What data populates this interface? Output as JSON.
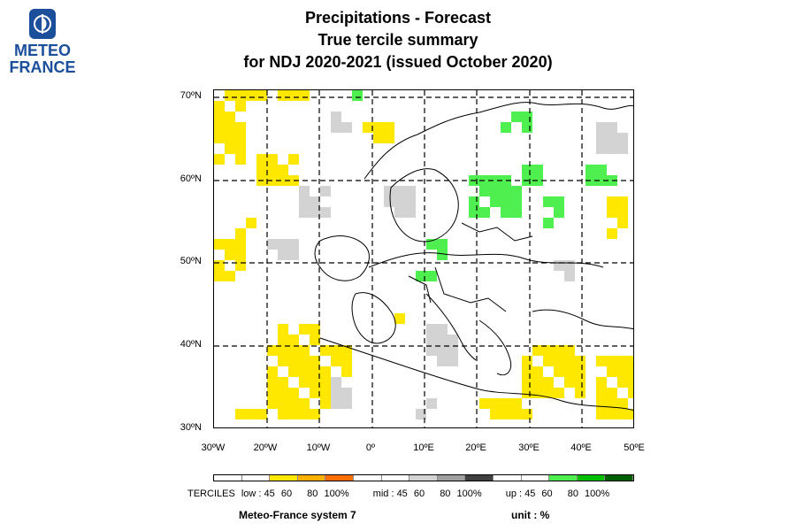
{
  "brand": {
    "line1": "METEO",
    "line2": "FRANCE"
  },
  "title": {
    "line1": "Precipitations   -   Forecast",
    "line2": "True tercile summary",
    "line3": "for NDJ 2020-2021   (issued October 2020)"
  },
  "map": {
    "lat_labels": [
      "70ºN",
      "60ºN",
      "50ºN",
      "40ºN",
      "30ºN"
    ],
    "lon_labels": [
      "30ºW",
      "20ºW",
      "10ºW",
      "0º",
      "10ºE",
      "20ºE",
      "30ºE",
      "40ºE",
      "50ºE"
    ],
    "colors": {
      "low45": "#ffe800",
      "low60": "#ffb000",
      "low80": "#ff7000",
      "mid45": "#d3d3d3",
      "mid60": "#a0a0a0",
      "mid80": "#404040",
      "up45": "#50ef50",
      "up60": "#00c000",
      "up80": "#006000"
    }
  },
  "legend": {
    "terciles_label": "TERCILES",
    "low_label": "low : 45",
    "low_v2": "60",
    "low_v3": "80",
    "low_v4": "100%",
    "mid_label": "mid : 45",
    "mid_v2": "60",
    "mid_v3": "80",
    "mid_v4": "100%",
    "up_label": "up : 45",
    "up_v2": "60",
    "up_v3": "80",
    "up_v4": "100%",
    "colors": [
      "#ffffff",
      "#ffffff",
      "#ffe800",
      "#ffb000",
      "#ff7000",
      "#ffffff",
      "#ffffff",
      "#d3d3d3",
      "#a0a0a0",
      "#404040",
      "#ffffff",
      "#ffffff",
      "#50ef50",
      "#00c000",
      "#006000"
    ]
  },
  "footer": {
    "model": "Meteo-France system 7",
    "unit": "unit : %"
  }
}
